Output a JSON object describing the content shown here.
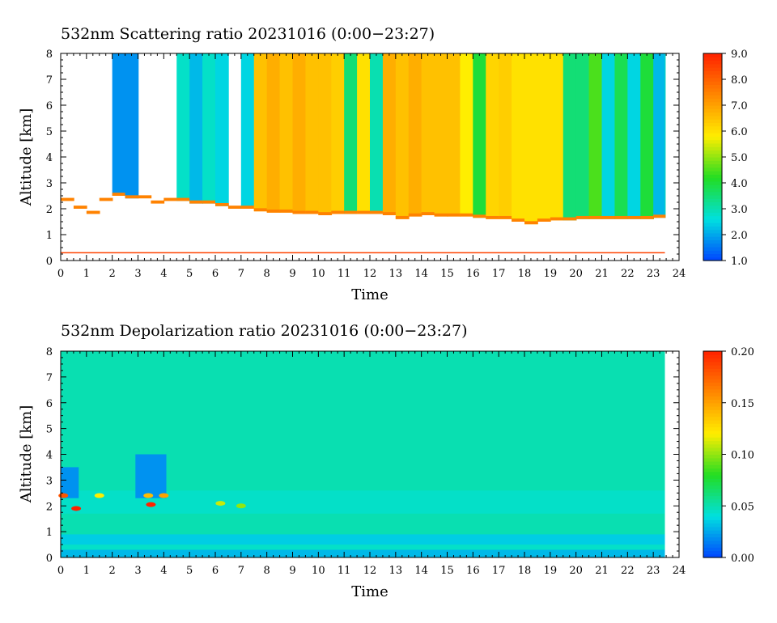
{
  "chart_data": [
    {
      "type": "heatmap",
      "title": "532nm Scattering ratio  20231016 (0:00−23:27)",
      "xlabel": "Time",
      "ylabel": "Altitude [km]",
      "xlim": [
        0,
        24
      ],
      "ylim": [
        0,
        8
      ],
      "x_ticks": [
        "0",
        "1",
        "2",
        "3",
        "4",
        "5",
        "6",
        "7",
        "8",
        "9",
        "10",
        "11",
        "12",
        "13",
        "14",
        "15",
        "16",
        "17",
        "18",
        "19",
        "20",
        "21",
        "22",
        "23",
        "24"
      ],
      "y_ticks": [
        "0",
        "1",
        "2",
        "3",
        "4",
        "5",
        "6",
        "7",
        "8"
      ],
      "colorbar": {
        "range": [
          1.0,
          9.0
        ],
        "ticks": [
          "1.0",
          "2.0",
          "3.0",
          "4.0",
          "5.0",
          "6.0",
          "7.0",
          "8.0",
          "9.0"
        ],
        "colors": [
          "#0044ff",
          "#00e0e0",
          "#22dd22",
          "#ffee00",
          "#ff8800",
          "#ff2200"
        ]
      },
      "time_columns": [
        0.0,
        0.5,
        1.0,
        1.5,
        2.0,
        2.5,
        3.0,
        3.5,
        4.0,
        4.5,
        5.0,
        5.5,
        6.0,
        6.5,
        7.0,
        7.5,
        8.0,
        8.5,
        9.0,
        9.5,
        10.0,
        10.5,
        11.0,
        11.5,
        12.0,
        12.5,
        13.0,
        13.5,
        14.0,
        14.5,
        15.0,
        15.5,
        16.0,
        16.5,
        17.0,
        17.5,
        18.0,
        18.5,
        19.0,
        19.5,
        20.0,
        20.5,
        21.0,
        21.5,
        22.0,
        22.5,
        23.0,
        23.45
      ],
      "column_values": [
        null,
        null,
        null,
        null,
        1.8,
        1.8,
        null,
        null,
        null,
        2.8,
        2.2,
        2.8,
        2.5,
        null,
        2.5,
        6.5,
        6.8,
        6.5,
        6.8,
        6.5,
        6.5,
        6.3,
        3.5,
        6.0,
        3.0,
        6.8,
        6.5,
        6.8,
        6.5,
        6.5,
        6.5,
        5.8,
        4.0,
        6.2,
        6.3,
        6.0,
        6.0,
        6.0,
        6.0,
        3.5,
        3.5,
        4.5,
        2.5,
        3.8,
        2.5,
        4.0,
        2.2,
        3.0
      ],
      "cloud_base_km": [
        2.3,
        2.0,
        1.8,
        2.3,
        2.5,
        2.4,
        2.4,
        2.2,
        2.3,
        2.3,
        2.2,
        2.2,
        2.1,
        2.0,
        2.0,
        1.9,
        1.85,
        1.85,
        1.8,
        1.8,
        1.75,
        1.8,
        1.8,
        1.8,
        1.8,
        1.75,
        1.6,
        1.7,
        1.75,
        1.7,
        1.7,
        1.7,
        1.65,
        1.6,
        1.6,
        1.5,
        1.4,
        1.5,
        1.55,
        1.55,
        1.6,
        1.6,
        1.6,
        1.6,
        1.6,
        1.6,
        1.65,
        1.65
      ],
      "surface_line_km": 0.3
    },
    {
      "type": "heatmap",
      "title": "532nm Depolarization ratio  20231016 (0:00−23:27)",
      "xlabel": "Time",
      "ylabel": "Altitude [km]",
      "xlim": [
        0,
        24
      ],
      "ylim": [
        0,
        8
      ],
      "x_ticks": [
        "0",
        "1",
        "2",
        "3",
        "4",
        "5",
        "6",
        "7",
        "8",
        "9",
        "10",
        "11",
        "12",
        "13",
        "14",
        "15",
        "16",
        "17",
        "18",
        "19",
        "20",
        "21",
        "22",
        "23",
        "24"
      ],
      "y_ticks": [
        "0",
        "1",
        "2",
        "3",
        "4",
        "5",
        "6",
        "7",
        "8"
      ],
      "colorbar": {
        "range": [
          0.0,
          0.2
        ],
        "ticks": [
          "0.00",
          "0.05",
          "0.10",
          "0.15",
          "0.20"
        ],
        "colors": [
          "#0044ff",
          "#00e0e0",
          "#22dd22",
          "#ffee00",
          "#ff8800",
          "#ff2200"
        ]
      },
      "time_end": 23.45,
      "background_value": 0.05,
      "layers": [
        {
          "z0": 0.0,
          "z1": 0.3,
          "value": 0.03
        },
        {
          "z0": 0.3,
          "z1": 0.5,
          "value": 0.045
        },
        {
          "z0": 0.5,
          "z1": 0.9,
          "value": 0.035
        },
        {
          "z0": 0.9,
          "z1": 1.7,
          "value": 0.05
        },
        {
          "z0": 1.7,
          "z1": 2.6,
          "value": 0.045
        },
        {
          "z0": 2.6,
          "z1": 8.0,
          "value": 0.05
        }
      ],
      "low_depol_columns": [
        {
          "t0": 0.0,
          "t1": 0.7,
          "z0": 2.3,
          "z1": 3.5,
          "value": 0.02
        },
        {
          "t0": 2.9,
          "t1": 4.1,
          "z0": 2.3,
          "z1": 4.0,
          "value": 0.02
        }
      ],
      "hotspots": [
        {
          "t": 0.1,
          "z": 2.4,
          "value": 0.18
        },
        {
          "t": 0.6,
          "z": 1.9,
          "value": 0.2
        },
        {
          "t": 1.5,
          "z": 2.4,
          "value": 0.12
        },
        {
          "t": 3.4,
          "z": 2.4,
          "value": 0.14
        },
        {
          "t": 3.5,
          "z": 2.05,
          "value": 0.2
        },
        {
          "t": 4.0,
          "z": 2.4,
          "value": 0.15
        },
        {
          "t": 6.2,
          "z": 2.1,
          "value": 0.11
        },
        {
          "t": 7.0,
          "z": 2.0,
          "value": 0.1
        }
      ]
    }
  ]
}
